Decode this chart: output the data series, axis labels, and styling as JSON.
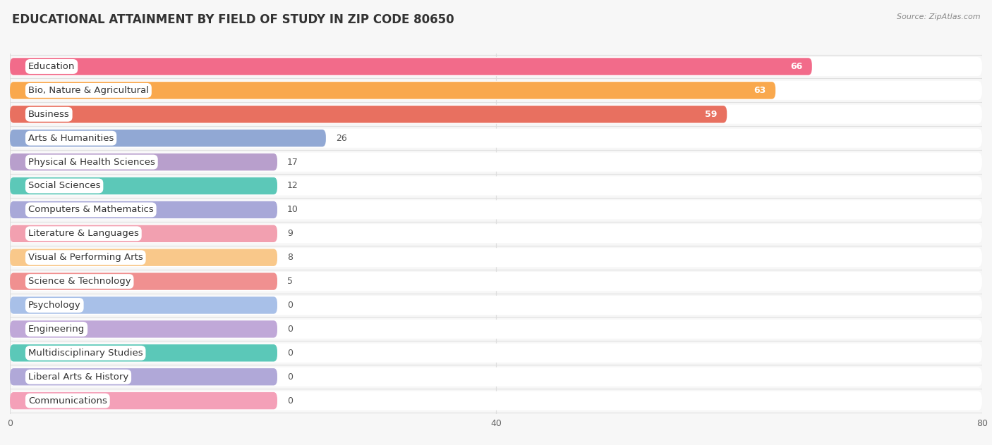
{
  "title": "EDUCATIONAL ATTAINMENT BY FIELD OF STUDY IN ZIP CODE 80650",
  "source": "Source: ZipAtlas.com",
  "categories": [
    "Education",
    "Bio, Nature & Agricultural",
    "Business",
    "Arts & Humanities",
    "Physical & Health Sciences",
    "Social Sciences",
    "Computers & Mathematics",
    "Literature & Languages",
    "Visual & Performing Arts",
    "Science & Technology",
    "Psychology",
    "Engineering",
    "Multidisciplinary Studies",
    "Liberal Arts & History",
    "Communications"
  ],
  "values": [
    66,
    63,
    59,
    26,
    17,
    12,
    10,
    9,
    8,
    5,
    0,
    0,
    0,
    0,
    0
  ],
  "bar_colors": [
    "#F26B8A",
    "#F9A84D",
    "#E87060",
    "#91A8D4",
    "#B89FCC",
    "#5CC8B8",
    "#A8A8D8",
    "#F2A0B0",
    "#F9C88A",
    "#F09090",
    "#A8C0E8",
    "#C0A8D8",
    "#5BC8B8",
    "#B0A8D8",
    "#F4A0B8"
  ],
  "xlim": [
    0,
    80
  ],
  "xticks": [
    0,
    40,
    80
  ],
  "background_color": "#f7f7f7",
  "row_bg_color": "#ffffff",
  "bar_height": 0.72,
  "min_bar_display": 22,
  "title_fontsize": 12,
  "label_fontsize": 9.5,
  "value_fontsize": 9
}
